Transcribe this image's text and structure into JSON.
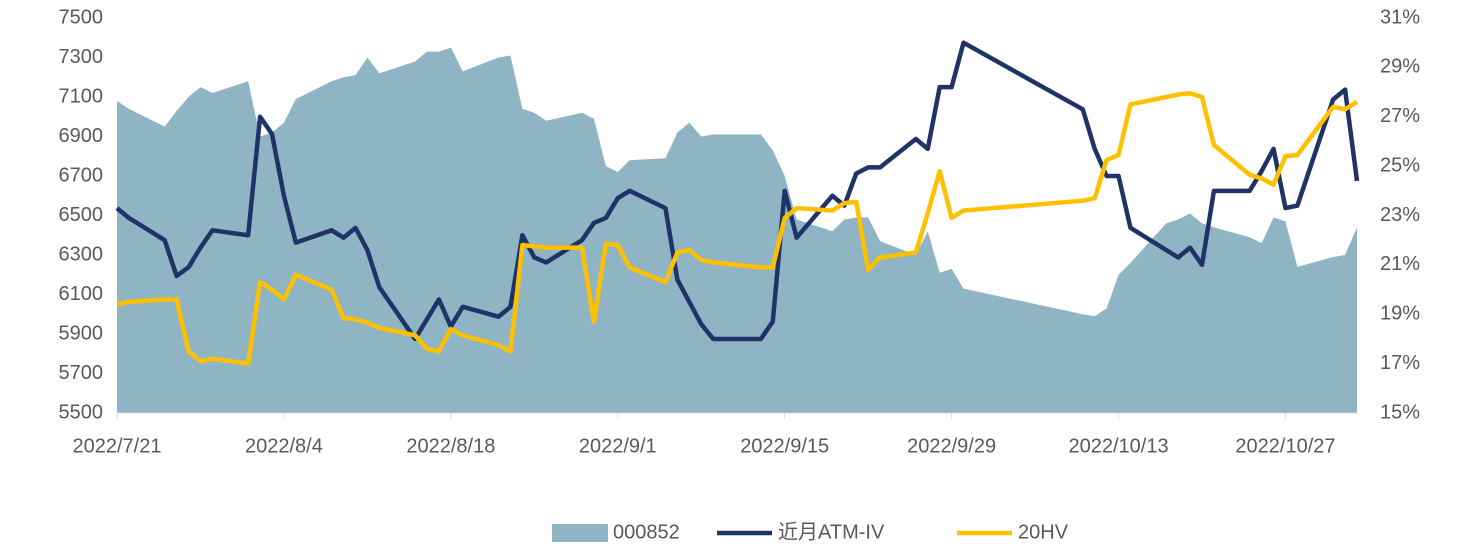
{
  "chart_data": {
    "type": "combo",
    "x": [
      "2022/7/21",
      "2022/7/22",
      "2022/7/25",
      "2022/7/26",
      "2022/7/27",
      "2022/7/28",
      "2022/7/29",
      "2022/8/1",
      "2022/8/2",
      "2022/8/3",
      "2022/8/4",
      "2022/8/5",
      "2022/8/8",
      "2022/8/9",
      "2022/8/10",
      "2022/8/11",
      "2022/8/12",
      "2022/8/15",
      "2022/8/16",
      "2022/8/17",
      "2022/8/18",
      "2022/8/19",
      "2022/8/22",
      "2022/8/23",
      "2022/8/24",
      "2022/8/25",
      "2022/8/26",
      "2022/8/29",
      "2022/8/30",
      "2022/8/31",
      "2022/9/1",
      "2022/9/2",
      "2022/9/5",
      "2022/9/6",
      "2022/9/7",
      "2022/9/8",
      "2022/9/9",
      "2022/9/13",
      "2022/9/14",
      "2022/9/15",
      "2022/9/16",
      "2022/9/19",
      "2022/9/20",
      "2022/9/21",
      "2022/9/22",
      "2022/9/23",
      "2022/9/26",
      "2022/9/27",
      "2022/9/28",
      "2022/9/29",
      "2022/9/30",
      "2022/10/10",
      "2022/10/11",
      "2022/10/12",
      "2022/10/13",
      "2022/10/14",
      "2022/10/17",
      "2022/10/18",
      "2022/10/19",
      "2022/10/20",
      "2022/10/21",
      "2022/10/24",
      "2022/10/25",
      "2022/10/26",
      "2022/10/27",
      "2022/10/28",
      "2022/10/31",
      "2022/11/1",
      "2022/11/2"
    ],
    "series": [
      {
        "name": "000852",
        "type": "area",
        "color": "#8fb5c5",
        "values": [
          7080,
          7040,
          6950,
          7030,
          7100,
          7150,
          7120,
          7180,
          6900,
          6920,
          6970,
          7090,
          7180,
          7200,
          7210,
          7300,
          7220,
          7280,
          7330,
          7330,
          7350,
          7230,
          7300,
          7310,
          7040,
          7020,
          6980,
          7020,
          6990,
          6750,
          6720,
          6780,
          6790,
          6920,
          6970,
          6900,
          6910,
          6910,
          6830,
          6700,
          6480,
          6420,
          6480,
          6490,
          6490,
          6370,
          6300,
          6420,
          6210,
          6230,
          6130,
          6000,
          5990,
          6030,
          6200,
          6260,
          6460,
          6480,
          6510,
          6460,
          6440,
          6390,
          6360,
          6490,
          6470,
          6240,
          6290,
          6300,
          6440
        ]
      },
      {
        "name": "近月ATM-IV",
        "type": "line",
        "axis": "y2",
        "color": "#1f3366",
        "values": [
          23.3,
          22.9,
          22.0,
          20.55,
          20.9,
          21.7,
          22.4,
          22.2,
          27.0,
          26.3,
          23.8,
          21.9,
          22.4,
          22.1,
          22.5,
          21.6,
          20.1,
          18.0,
          18.8,
          19.6,
          18.5,
          19.3,
          18.9,
          19.3,
          22.2,
          21.3,
          21.1,
          22.0,
          22.7,
          22.9,
          23.7,
          24.0,
          23.3,
          20.4,
          19.5,
          18.6,
          18.0,
          18.0,
          18.7,
          24.0,
          22.1,
          23.8,
          23.4,
          24.7,
          24.95,
          24.95,
          26.1,
          25.7,
          28.2,
          28.2,
          30.0,
          27.3,
          25.7,
          24.6,
          24.6,
          22.5,
          21.6,
          21.3,
          21.7,
          21.0,
          24.0,
          24.0,
          24.8,
          25.7,
          23.3,
          23.4,
          27.7,
          28.1,
          24.4
        ]
      },
      {
        "name": "20HV",
        "type": "line",
        "axis": "y2",
        "color": "#ffc000",
        "values": [
          19.4,
          19.5,
          19.6,
          19.6,
          17.5,
          17.1,
          17.2,
          17.0,
          20.3,
          20.0,
          19.6,
          20.6,
          20.0,
          18.85,
          18.8,
          18.65,
          18.45,
          18.15,
          17.6,
          17.5,
          18.4,
          18.15,
          17.75,
          17.5,
          21.8,
          21.75,
          21.7,
          21.7,
          18.7,
          21.85,
          21.8,
          20.9,
          20.3,
          21.5,
          21.6,
          21.2,
          21.1,
          20.9,
          20.9,
          22.9,
          23.3,
          23.2,
          23.5,
          23.55,
          20.8,
          21.3,
          21.5,
          23.1,
          24.8,
          22.9,
          23.2,
          23.6,
          23.7,
          25.25,
          25.45,
          27.5,
          27.8,
          27.9,
          27.95,
          27.8,
          25.85,
          24.65,
          24.5,
          24.25,
          25.4,
          25.45,
          27.4,
          27.3,
          27.6
        ]
      }
    ],
    "xlim": [
      "2022/7/21",
      "2022/11/2"
    ],
    "xticks": [
      "2022/7/21",
      "2022/8/4",
      "2022/8/18",
      "2022/9/1",
      "2022/9/15",
      "2022/9/29",
      "2022/10/13",
      "2022/10/27"
    ],
    "ylim": [
      5500,
      7500
    ],
    "yticks": [
      5500,
      5700,
      5900,
      6100,
      6300,
      6500,
      6700,
      6900,
      7100,
      7300,
      7500
    ],
    "y2lim": [
      15,
      31
    ],
    "y2ticks": [
      {
        "value": 15,
        "label": "15%"
      },
      {
        "value": 17,
        "label": "17%"
      },
      {
        "value": 19,
        "label": "19%"
      },
      {
        "value": 21,
        "label": "21%"
      },
      {
        "value": 23,
        "label": "23%"
      },
      {
        "value": 25,
        "label": "25%"
      },
      {
        "value": 27,
        "label": "27%"
      },
      {
        "value": 29,
        "label": "29%"
      },
      {
        "value": 31,
        "label": "31%"
      }
    ],
    "legend": "bottom"
  }
}
